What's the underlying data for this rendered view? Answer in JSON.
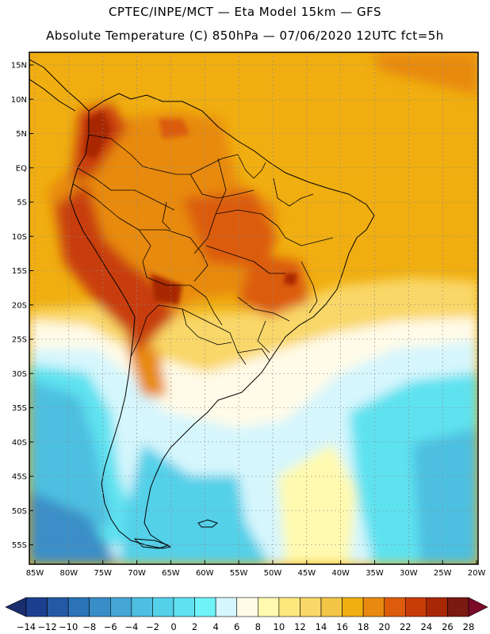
{
  "header": {
    "title_line1": "CPTEC/INPE/MCT —  Eta Model 15km — GFS",
    "title_line2": "Absolute Temperature (C) 850hPa — 07/06/2020 12UTC fct=5h"
  },
  "axes": {
    "lat_labels": [
      "15N",
      "10N",
      "5N",
      "EQ",
      "5S",
      "10S",
      "15S",
      "20S",
      "25S",
      "30S",
      "35S",
      "40S",
      "45S",
      "50S",
      "55S"
    ],
    "lon_labels": [
      "85W",
      "80W",
      "75W",
      "70W",
      "65W",
      "60W",
      "55W",
      "50W",
      "45W",
      "40W",
      "35W",
      "30W",
      "25W",
      "20W"
    ]
  },
  "colorbar": {
    "labels": [
      "-14",
      "-12",
      "-10",
      "-8",
      "-6",
      "-4",
      "-2",
      "0",
      "2",
      "4",
      "6",
      "8",
      "10",
      "12",
      "14",
      "16",
      "18",
      "20",
      "22",
      "24",
      "26",
      "28"
    ],
    "colors": [
      "#1d3f8f",
      "#245aa5",
      "#2c73b8",
      "#3a8ec7",
      "#44a6d4",
      "#4dbfe0",
      "#55d0e9",
      "#5fe2f0",
      "#6ef4f8",
      "#d5f6fd",
      "#fffbe8",
      "#fffab0",
      "#fde87e",
      "#f9d768",
      "#f3c648",
      "#f0ae10",
      "#e88a10",
      "#dc5c0c",
      "#c83c08",
      "#a82806",
      "#7a1a10"
    ],
    "cap_low": "#1a2d6e",
    "cap_high": "#7a0a28"
  },
  "chart_data": {
    "type": "heatmap",
    "variable": "Absolute Temperature (C) 850hPa",
    "model": "Eta Model 15km - GFS",
    "valid": "07/06/2020 12UTC fct=5h",
    "lon_range": [
      -86,
      -20
    ],
    "lat_range": [
      -58,
      16
    ],
    "levels": [
      -14,
      -12,
      -10,
      -8,
      -6,
      -4,
      -2,
      0,
      2,
      4,
      6,
      8,
      10,
      12,
      14,
      16,
      18,
      20,
      22,
      24,
      26,
      28
    ]
  }
}
